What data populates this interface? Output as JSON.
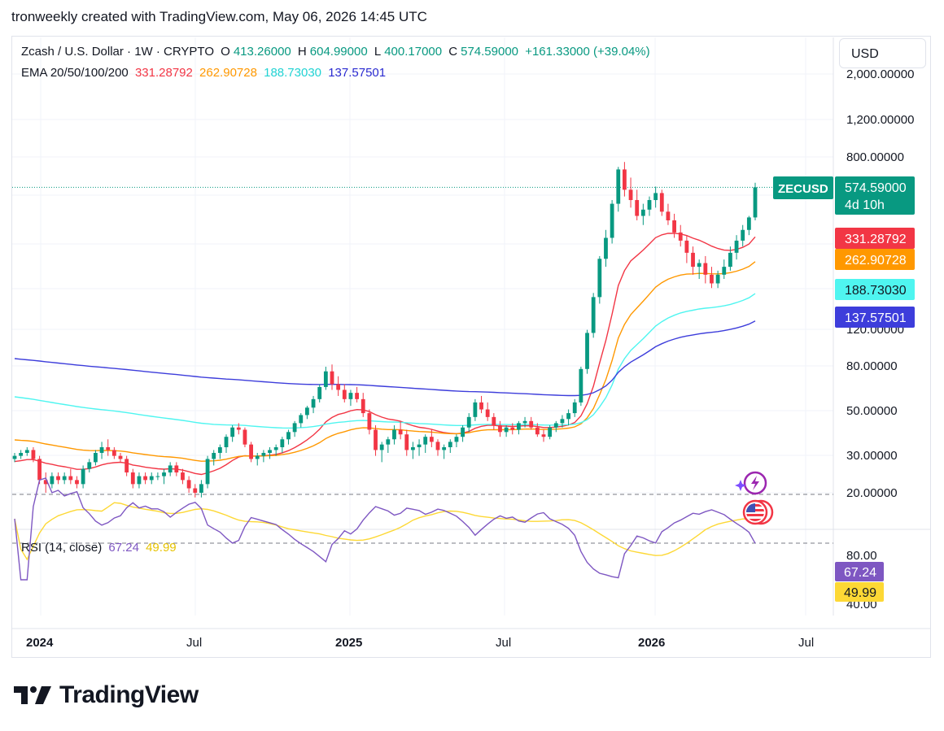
{
  "header": {
    "text": "tronweekly created with TradingView.com, May 06, 2026 14:45 UTC"
  },
  "currency_button": "USD",
  "brand": {
    "name": "TradingView"
  },
  "legend": {
    "symbol_line": "Zcash / U.S. Dollar · 1W · CRYPTO",
    "open_label": "O",
    "open": "413.26000",
    "high_label": "H",
    "high": "604.99000",
    "low_label": "L",
    "low": "400.17000",
    "close_label": "C",
    "close": "574.59000",
    "change": "+161.33000 (+39.04%)",
    "ema_label": "EMA 20/50/100/200",
    "ema20": "331.28792",
    "ema50": "262.90728",
    "ema100": "188.73030",
    "ema200": "137.57501",
    "rsi_label": "RSI (14, close)",
    "rsi": "67.24",
    "rsi_ma": "49.99"
  },
  "colors": {
    "up": "#089981",
    "down": "#f23645",
    "ema20": "#f23645",
    "ema50": "#ff9800",
    "ema100": "#4ff5f0",
    "ema200": "#3d3ddb",
    "rsi": "#7e57c2",
    "rsi_ma": "#fdd835"
  },
  "icons": [
    "spark-logo-icon",
    "us-flag-icon"
  ],
  "chart_data": {
    "type": "candlestick",
    "scale": "log",
    "price_axis_ticks": [
      "2,000.00000",
      "1,200.00000",
      "800.00000",
      "120.00000",
      "80.00000",
      "50.00000",
      "30.00000",
      "20.00000"
    ],
    "time_axis_labels": [
      "2024",
      "Jul",
      "2025",
      "Jul",
      "2026",
      "Jul"
    ],
    "price_tags": [
      {
        "label": "ZECUSD",
        "value": "574.59000",
        "sub": "4d 10h",
        "color": "#089981"
      },
      {
        "value": "331.28792",
        "color": "#f23645"
      },
      {
        "value": "262.90728",
        "color": "#ff9800"
      },
      {
        "value": "188.73030",
        "color": "#4ff5f0"
      },
      {
        "value": "137.57501",
        "color": "#3d3ddb"
      }
    ],
    "rsi_axis_ticks": [
      "80.00",
      "40.00"
    ],
    "rsi_tags": [
      {
        "value": "67.24",
        "color": "#7e57c2"
      },
      {
        "value": "49.99",
        "color": "#fdd835"
      }
    ],
    "rsi_band": [
      30,
      70
    ],
    "candles": [
      [
        29,
        31,
        28,
        30
      ],
      [
        30,
        32,
        29,
        31
      ],
      [
        31,
        33,
        30,
        32
      ],
      [
        32,
        33,
        28,
        29
      ],
      [
        29,
        30,
        22,
        23
      ],
      [
        23,
        25,
        20,
        22
      ],
      [
        22,
        25,
        21,
        24
      ],
      [
        24,
        25,
        22,
        23
      ],
      [
        23,
        25,
        22,
        24
      ],
      [
        24,
        26,
        22,
        23
      ],
      [
        23,
        24,
        21,
        22
      ],
      [
        22,
        27,
        21,
        26
      ],
      [
        26,
        29,
        25,
        28
      ],
      [
        28,
        32,
        27,
        31
      ],
      [
        31,
        35,
        29,
        33
      ],
      [
        33,
        36,
        30,
        32
      ],
      [
        32,
        33,
        29,
        30
      ],
      [
        30,
        31,
        28,
        29
      ],
      [
        29,
        30,
        24,
        25
      ],
      [
        25,
        26,
        21,
        22
      ],
      [
        22,
        25,
        21,
        24
      ],
      [
        24,
        25,
        22,
        23
      ],
      [
        23,
        25,
        22,
        24
      ],
      [
        24,
        25,
        23,
        24
      ],
      [
        24,
        26,
        22,
        25
      ],
      [
        25,
        28,
        24,
        27
      ],
      [
        27,
        28,
        24,
        25
      ],
      [
        25,
        26,
        22,
        23
      ],
      [
        23,
        24,
        20,
        21
      ],
      [
        21,
        22,
        19,
        20
      ],
      [
        20,
        23,
        19,
        22
      ],
      [
        22,
        30,
        21,
        29
      ],
      [
        29,
        32,
        27,
        31
      ],
      [
        31,
        34,
        29,
        33
      ],
      [
        33,
        38,
        31,
        37
      ],
      [
        37,
        42,
        35,
        41
      ],
      [
        41,
        43,
        38,
        40
      ],
      [
        40,
        41,
        33,
        34
      ],
      [
        34,
        35,
        28,
        29
      ],
      [
        29,
        31,
        27,
        30
      ],
      [
        30,
        32,
        28,
        31
      ],
      [
        31,
        33,
        29,
        32
      ],
      [
        32,
        34,
        30,
        33
      ],
      [
        33,
        37,
        31,
        36
      ],
      [
        36,
        40,
        34,
        39
      ],
      [
        39,
        44,
        37,
        43
      ],
      [
        43,
        48,
        41,
        47
      ],
      [
        47,
        52,
        45,
        51
      ],
      [
        51,
        58,
        48,
        56
      ],
      [
        56,
        66,
        54,
        64
      ],
      [
        64,
        80,
        62,
        76
      ],
      [
        76,
        82,
        62,
        66
      ],
      [
        66,
        72,
        58,
        62
      ],
      [
        62,
        66,
        54,
        56
      ],
      [
        56,
        62,
        52,
        60
      ],
      [
        60,
        64,
        54,
        56
      ],
      [
        56,
        60,
        46,
        48
      ],
      [
        48,
        50,
        38,
        40
      ],
      [
        40,
        42,
        30,
        32
      ],
      [
        32,
        35,
        28,
        34
      ],
      [
        34,
        37,
        31,
        36
      ],
      [
        36,
        42,
        34,
        40
      ],
      [
        40,
        44,
        36,
        38
      ],
      [
        38,
        40,
        30,
        32
      ],
      [
        32,
        35,
        29,
        33
      ],
      [
        33,
        36,
        30,
        34
      ],
      [
        34,
        38,
        31,
        37
      ],
      [
        37,
        40,
        33,
        35
      ],
      [
        35,
        36,
        30,
        32
      ],
      [
        32,
        34,
        29,
        33
      ],
      [
        33,
        36,
        31,
        35
      ],
      [
        35,
        38,
        33,
        37
      ],
      [
        37,
        42,
        35,
        41
      ],
      [
        41,
        48,
        39,
        46
      ],
      [
        46,
        56,
        44,
        54
      ],
      [
        54,
        58,
        48,
        50
      ],
      [
        50,
        54,
        44,
        46
      ],
      [
        46,
        48,
        40,
        42
      ],
      [
        42,
        44,
        37,
        39
      ],
      [
        39,
        42,
        37,
        41
      ],
      [
        41,
        43,
        38,
        40
      ],
      [
        40,
        44,
        38,
        43
      ],
      [
        43,
        46,
        41,
        44
      ],
      [
        44,
        46,
        40,
        41
      ],
      [
        41,
        43,
        37,
        38
      ],
      [
        38,
        40,
        35,
        37
      ],
      [
        37,
        42,
        36,
        41
      ],
      [
        41,
        44,
        39,
        43
      ],
      [
        43,
        47,
        41,
        45
      ],
      [
        45,
        50,
        42,
        48
      ],
      [
        48,
        56,
        46,
        54
      ],
      [
        54,
        80,
        52,
        78
      ],
      [
        78,
        120,
        74,
        116
      ],
      [
        116,
        180,
        110,
        172
      ],
      [
        172,
        270,
        160,
        262
      ],
      [
        262,
        360,
        240,
        330
      ],
      [
        330,
        500,
        310,
        480
      ],
      [
        480,
        720,
        440,
        700
      ],
      [
        700,
        760,
        520,
        560
      ],
      [
        560,
        640,
        460,
        500
      ],
      [
        500,
        560,
        400,
        420
      ],
      [
        420,
        480,
        380,
        450
      ],
      [
        450,
        520,
        420,
        500
      ],
      [
        500,
        580,
        460,
        540
      ],
      [
        540,
        560,
        420,
        440
      ],
      [
        440,
        480,
        380,
        400
      ],
      [
        400,
        430,
        330,
        350
      ],
      [
        350,
        380,
        300,
        320
      ],
      [
        320,
        340,
        250,
        280
      ],
      [
        280,
        300,
        220,
        240
      ],
      [
        240,
        260,
        210,
        250
      ],
      [
        250,
        270,
        200,
        220
      ],
      [
        220,
        240,
        190,
        200
      ],
      [
        200,
        230,
        190,
        220
      ],
      [
        220,
        260,
        210,
        240
      ],
      [
        240,
        300,
        230,
        280
      ],
      [
        280,
        340,
        260,
        320
      ],
      [
        320,
        380,
        300,
        360
      ],
      [
        360,
        420,
        340,
        413
      ],
      [
        413,
        605,
        400,
        575
      ]
    ]
  }
}
